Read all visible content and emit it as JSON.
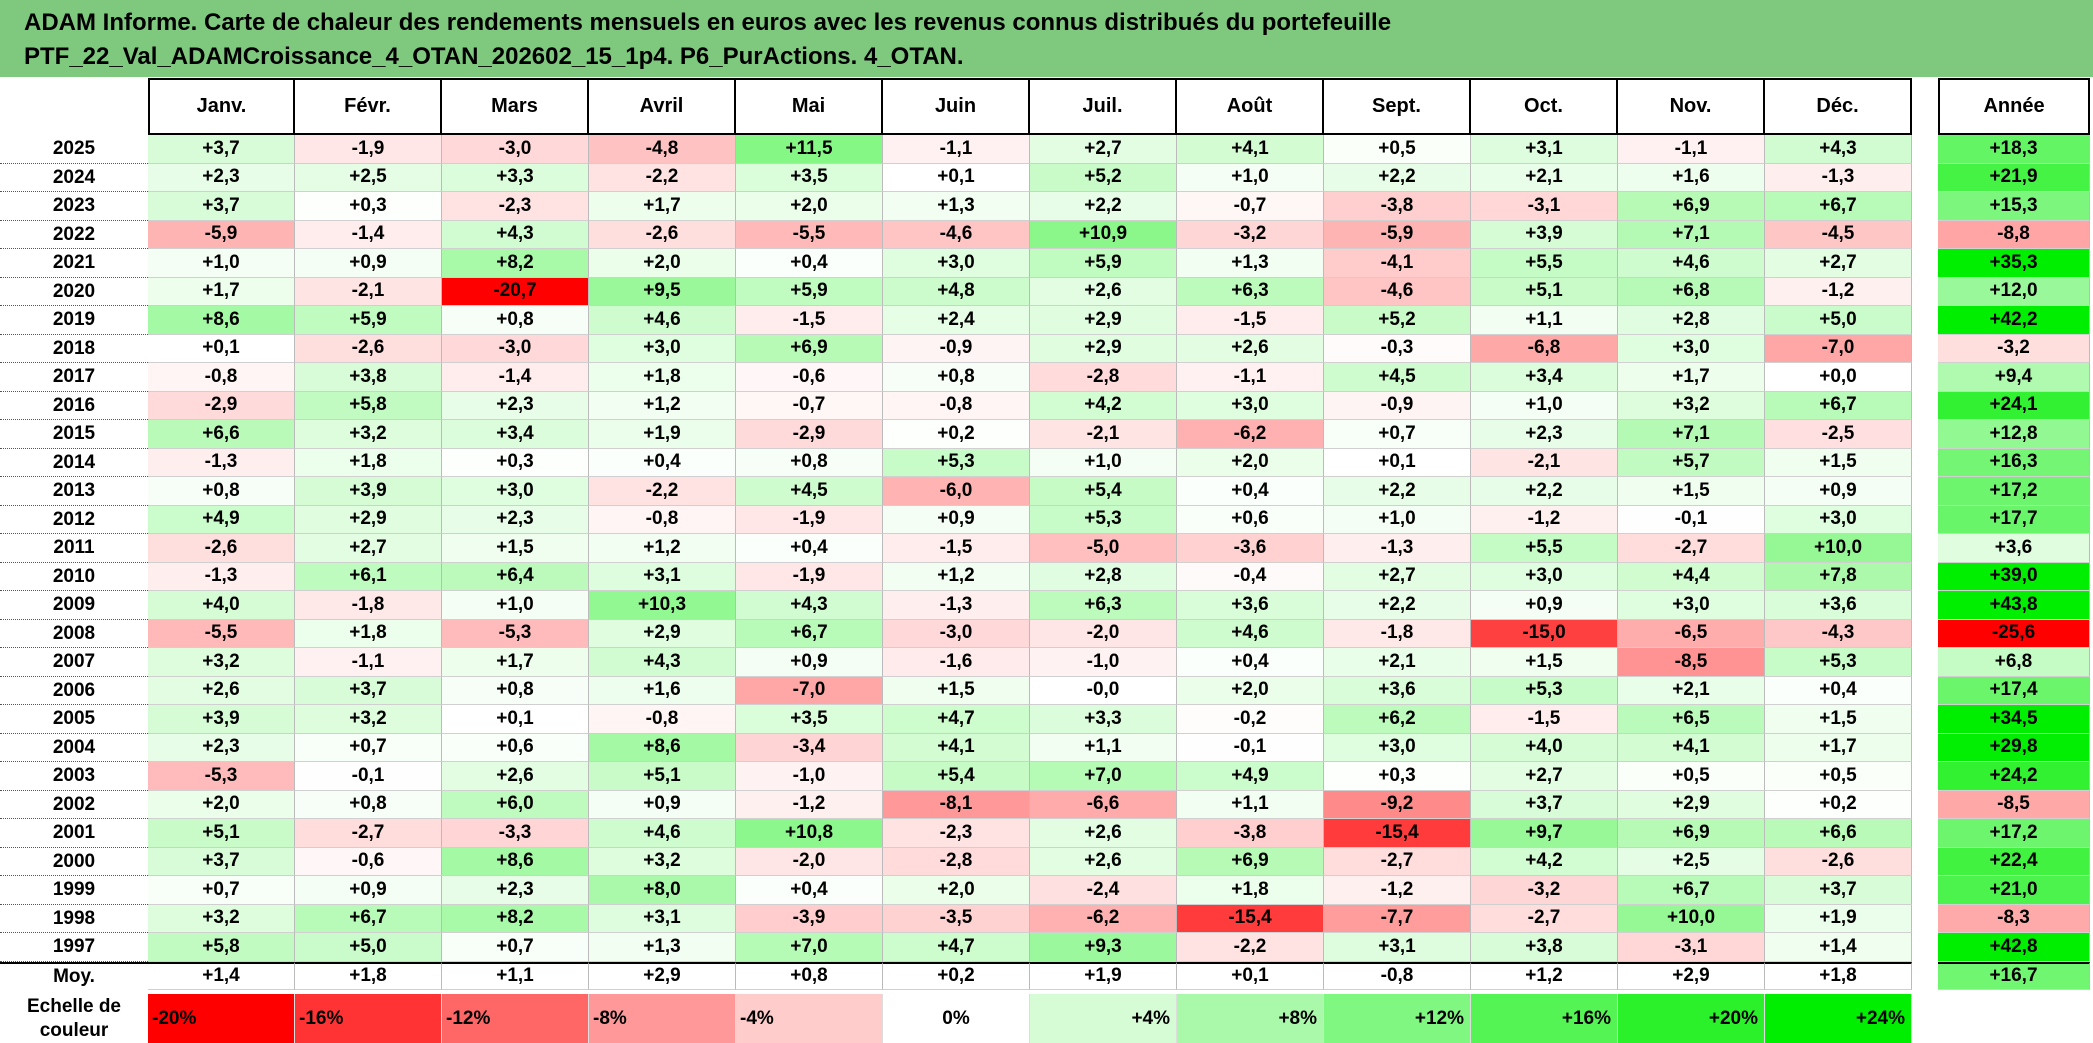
{
  "chart_data": {
    "type": "heatmap",
    "title_line1": "ADAM Informe. Carte de chaleur des rendements mensuels en euros avec les revenus connus distribués du portefeuille",
    "title_line2": "PTF_22_Val_ADAMCroissance_4_OTAN_202602_15_1p4. P6_PurActions. 4_OTAN.",
    "columns": [
      "Janv.",
      "Févr.",
      "Mars",
      "Avril",
      "Mai",
      "Juin",
      "Juil.",
      "Août",
      "Sept.",
      "Oct.",
      "Nov.",
      "Déc."
    ],
    "year_column": "Année",
    "rows": [
      {
        "label": "2025",
        "values": [
          "+3,7",
          "-1,9",
          "-3,0",
          "-4,8",
          "+11,5",
          "-1,1",
          "+2,7",
          "+4,1",
          "+0,5",
          "+3,1",
          "-1,1",
          "+4,3"
        ],
        "annual": "+18,3"
      },
      {
        "label": "2024",
        "values": [
          "+2,3",
          "+2,5",
          "+3,3",
          "-2,2",
          "+3,5",
          "+0,1",
          "+5,2",
          "+1,0",
          "+2,2",
          "+2,1",
          "+1,6",
          "-1,3"
        ],
        "annual": "+21,9"
      },
      {
        "label": "2023",
        "values": [
          "+3,7",
          "+0,3",
          "-2,3",
          "+1,7",
          "+2,0",
          "+1,3",
          "+2,2",
          "-0,7",
          "-3,8",
          "-3,1",
          "+6,9",
          "+6,7"
        ],
        "annual": "+15,3"
      },
      {
        "label": "2022",
        "values": [
          "-5,9",
          "-1,4",
          "+4,3",
          "-2,6",
          "-5,5",
          "-4,6",
          "+10,9",
          "-3,2",
          "-5,9",
          "+3,9",
          "+7,1",
          "-4,5"
        ],
        "annual": "-8,8"
      },
      {
        "label": "2021",
        "values": [
          "+1,0",
          "+0,9",
          "+8,2",
          "+2,0",
          "+0,4",
          "+3,0",
          "+5,9",
          "+1,3",
          "-4,1",
          "+5,5",
          "+4,6",
          "+2,7"
        ],
        "annual": "+35,3"
      },
      {
        "label": "2020",
        "values": [
          "+1,7",
          "-2,1",
          "-20,7",
          "+9,5",
          "+5,9",
          "+4,8",
          "+2,6",
          "+6,3",
          "-4,6",
          "+5,1",
          "+6,8",
          "-1,2"
        ],
        "annual": "+12,0"
      },
      {
        "label": "2019",
        "values": [
          "+8,6",
          "+5,9",
          "+0,8",
          "+4,6",
          "-1,5",
          "+2,4",
          "+2,9",
          "-1,5",
          "+5,2",
          "+1,1",
          "+2,8",
          "+5,0"
        ],
        "annual": "+42,2"
      },
      {
        "label": "2018",
        "values": [
          "+0,1",
          "-2,6",
          "-3,0",
          "+3,0",
          "+6,9",
          "-0,9",
          "+2,9",
          "+2,6",
          "-0,3",
          "-6,8",
          "+3,0",
          "-7,0"
        ],
        "annual": "-3,2"
      },
      {
        "label": "2017",
        "values": [
          "-0,8",
          "+3,8",
          "-1,4",
          "+1,8",
          "-0,6",
          "+0,8",
          "-2,8",
          "-1,1",
          "+4,5",
          "+3,4",
          "+1,7",
          "+0,0"
        ],
        "annual": "+9,4"
      },
      {
        "label": "2016",
        "values": [
          "-2,9",
          "+5,8",
          "+2,3",
          "+1,2",
          "-0,7",
          "-0,8",
          "+4,2",
          "+3,0",
          "-0,9",
          "+1,0",
          "+3,2",
          "+6,7"
        ],
        "annual": "+24,1"
      },
      {
        "label": "2015",
        "values": [
          "+6,6",
          "+3,2",
          "+3,4",
          "+1,9",
          "-2,9",
          "+0,2",
          "-2,1",
          "-6,2",
          "+0,7",
          "+2,3",
          "+7,1",
          "-2,5"
        ],
        "annual": "+12,8"
      },
      {
        "label": "2014",
        "values": [
          "-1,3",
          "+1,8",
          "+0,3",
          "+0,4",
          "+0,8",
          "+5,3",
          "+1,0",
          "+2,0",
          "+0,1",
          "-2,1",
          "+5,7",
          "+1,5"
        ],
        "annual": "+16,3"
      },
      {
        "label": "2013",
        "values": [
          "+0,8",
          "+3,9",
          "+3,0",
          "-2,2",
          "+4,5",
          "-6,0",
          "+5,4",
          "+0,4",
          "+2,2",
          "+2,2",
          "+1,5",
          "+0,9"
        ],
        "annual": "+17,2"
      },
      {
        "label": "2012",
        "values": [
          "+4,9",
          "+2,9",
          "+2,3",
          "-0,8",
          "-1,9",
          "+0,9",
          "+5,3",
          "+0,6",
          "+1,0",
          "-1,2",
          "-0,1",
          "+3,0"
        ],
        "annual": "+17,7"
      },
      {
        "label": "2011",
        "values": [
          "-2,6",
          "+2,7",
          "+1,5",
          "+1,2",
          "+0,4",
          "-1,5",
          "-5,0",
          "-3,6",
          "-1,3",
          "+5,5",
          "-2,7",
          "+10,0"
        ],
        "annual": "+3,6"
      },
      {
        "label": "2010",
        "values": [
          "-1,3",
          "+6,1",
          "+6,4",
          "+3,1",
          "-1,9",
          "+1,2",
          "+2,8",
          "-0,4",
          "+2,7",
          "+3,0",
          "+4,4",
          "+7,8"
        ],
        "annual": "+39,0"
      },
      {
        "label": "2009",
        "values": [
          "+4,0",
          "-1,8",
          "+1,0",
          "+10,3",
          "+4,3",
          "-1,3",
          "+6,3",
          "+3,6",
          "+2,2",
          "+0,9",
          "+3,0",
          "+3,6"
        ],
        "annual": "+43,8"
      },
      {
        "label": "2008",
        "values": [
          "-5,5",
          "+1,8",
          "-5,3",
          "+2,9",
          "+6,7",
          "-3,0",
          "-2,0",
          "+4,6",
          "-1,8",
          "-15,0",
          "-6,5",
          "-4,3"
        ],
        "annual": "-25,6"
      },
      {
        "label": "2007",
        "values": [
          "+3,2",
          "-1,1",
          "+1,7",
          "+4,3",
          "+0,9",
          "-1,6",
          "-1,0",
          "+0,4",
          "+2,1",
          "+1,5",
          "-8,5",
          "+5,3"
        ],
        "annual": "+6,8"
      },
      {
        "label": "2006",
        "values": [
          "+2,6",
          "+3,7",
          "+0,8",
          "+1,6",
          "-7,0",
          "+1,5",
          "-0,0",
          "+2,0",
          "+3,6",
          "+5,3",
          "+2,1",
          "+0,4"
        ],
        "annual": "+17,4"
      },
      {
        "label": "2005",
        "values": [
          "+3,9",
          "+3,2",
          "+0,1",
          "-0,8",
          "+3,5",
          "+4,7",
          "+3,3",
          "-0,2",
          "+6,2",
          "-1,5",
          "+6,5",
          "+1,5"
        ],
        "annual": "+34,5"
      },
      {
        "label": "2004",
        "values": [
          "+2,3",
          "+0,7",
          "+0,6",
          "+8,6",
          "-3,4",
          "+4,1",
          "+1,1",
          "-0,1",
          "+3,0",
          "+4,0",
          "+4,1",
          "+1,7"
        ],
        "annual": "+29,8"
      },
      {
        "label": "2003",
        "values": [
          "-5,3",
          "-0,1",
          "+2,6",
          "+5,1",
          "-1,0",
          "+5,4",
          "+7,0",
          "+4,9",
          "+0,3",
          "+2,7",
          "+0,5",
          "+0,5"
        ],
        "annual": "+24,2"
      },
      {
        "label": "2002",
        "values": [
          "+2,0",
          "+0,8",
          "+6,0",
          "+0,9",
          "-1,2",
          "-8,1",
          "-6,6",
          "+1,1",
          "-9,2",
          "+3,7",
          "+2,9",
          "+0,2"
        ],
        "annual": "-8,5"
      },
      {
        "label": "2001",
        "values": [
          "+5,1",
          "-2,7",
          "-3,3",
          "+4,6",
          "+10,8",
          "-2,3",
          "+2,6",
          "-3,8",
          "-15,4",
          "+9,7",
          "+6,9",
          "+6,6"
        ],
        "annual": "+17,2"
      },
      {
        "label": "2000",
        "values": [
          "+3,7",
          "-0,6",
          "+8,6",
          "+3,2",
          "-2,0",
          "-2,8",
          "+2,6",
          "+6,9",
          "-2,7",
          "+4,2",
          "+2,5",
          "-2,6"
        ],
        "annual": "+22,4"
      },
      {
        "label": "1999",
        "values": [
          "+0,7",
          "+0,9",
          "+2,3",
          "+8,0",
          "+0,4",
          "+2,0",
          "-2,4",
          "+1,8",
          "-1,2",
          "-3,2",
          "+6,7",
          "+3,7"
        ],
        "annual": "+21,0"
      },
      {
        "label": "1998",
        "values": [
          "+3,2",
          "+6,7",
          "+8,2",
          "+3,1",
          "-3,9",
          "-3,5",
          "-6,2",
          "-15,4",
          "-7,7",
          "-2,7",
          "+10,0",
          "+1,9"
        ],
        "annual": "-8,3"
      },
      {
        "label": "1997",
        "values": [
          "+5,8",
          "+5,0",
          "+0,7",
          "+1,3",
          "+7,0",
          "+4,7",
          "+9,3",
          "-2,2",
          "+3,1",
          "+3,8",
          "-3,1",
          "+1,4"
        ],
        "annual": "+42,8"
      }
    ],
    "average_row": {
      "label": "Moy.",
      "values": [
        "+1,4",
        "+1,8",
        "+1,1",
        "+2,9",
        "+0,8",
        "+0,2",
        "+1,9",
        "+0,1",
        "-0,8",
        "+1,2",
        "+2,9",
        "+1,8"
      ],
      "annual": "+16,7"
    },
    "legend": {
      "label_line1": "Echelle de",
      "label_line2": "couleur",
      "steps": [
        {
          "label": "-20%",
          "value": -20
        },
        {
          "label": "-16%",
          "value": -16
        },
        {
          "label": "-12%",
          "value": -12
        },
        {
          "label": "-8%",
          "value": -8
        },
        {
          "label": "-4%",
          "value": -4
        },
        {
          "label": "0%",
          "value": 0
        },
        {
          "label": "+4%",
          "value": 4
        },
        {
          "label": "+8%",
          "value": 8
        },
        {
          "label": "+12%",
          "value": 12
        },
        {
          "label": "+16%",
          "value": 16
        },
        {
          "label": "+20%",
          "value": 20
        },
        {
          "label": "+24%",
          "value": 24
        }
      ]
    },
    "colors": {
      "negative_max": "#ff0000",
      "positive_max": "#00ee00",
      "zero": "#ffffff",
      "banner": "#7fc97f"
    }
  }
}
